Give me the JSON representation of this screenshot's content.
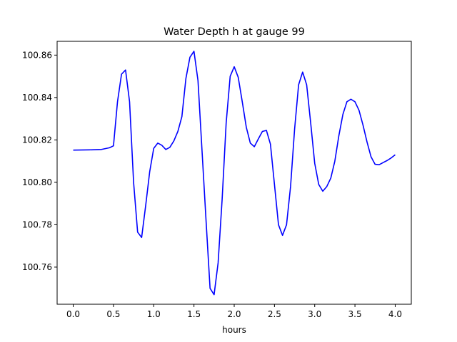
{
  "chart_data": {
    "type": "line",
    "title": "Water Depth h at gauge 99",
    "xlabel": "hours",
    "ylabel": "",
    "xlim": [
      -0.2,
      4.2
    ],
    "ylim": [
      100.7425,
      100.8665
    ],
    "xticks": [
      0.0,
      0.5,
      1.0,
      1.5,
      2.0,
      2.5,
      3.0,
      3.5,
      4.0
    ],
    "xtick_labels": [
      "0.0",
      "0.5",
      "1.0",
      "1.5",
      "2.0",
      "2.5",
      "3.0",
      "3.5",
      "4.0"
    ],
    "yticks": [
      100.76,
      100.78,
      100.8,
      100.82,
      100.84,
      100.86
    ],
    "ytick_labels": [
      "100.76",
      "100.78",
      "100.80",
      "100.82",
      "100.84",
      "100.86"
    ],
    "grid": false,
    "legend": "none",
    "series": [
      {
        "color": "#0000ff",
        "x": [
          0.0,
          0.2,
          0.35,
          0.45,
          0.5,
          0.55,
          0.6,
          0.65,
          0.7,
          0.75,
          0.8,
          0.85,
          0.9,
          0.95,
          1.0,
          1.05,
          1.1,
          1.15,
          1.2,
          1.25,
          1.3,
          1.35,
          1.4,
          1.45,
          1.5,
          1.55,
          1.6,
          1.65,
          1.7,
          1.75,
          1.8,
          1.85,
          1.9,
          1.95,
          2.0,
          2.05,
          2.1,
          2.15,
          2.2,
          2.25,
          2.3,
          2.35,
          2.4,
          2.45,
          2.5,
          2.55,
          2.6,
          2.65,
          2.7,
          2.75,
          2.8,
          2.85,
          2.9,
          2.95,
          3.0,
          3.05,
          3.1,
          3.15,
          3.2,
          3.25,
          3.3,
          3.35,
          3.4,
          3.45,
          3.5,
          3.55,
          3.6,
          3.65,
          3.7,
          3.75,
          3.8,
          3.85,
          3.9,
          3.95,
          4.0
        ],
        "y": [
          100.8152,
          100.8153,
          100.8155,
          100.8163,
          100.8172,
          100.838,
          100.851,
          100.853,
          100.838,
          100.8,
          100.7765,
          100.774,
          100.789,
          100.805,
          100.816,
          100.8185,
          100.8175,
          100.8155,
          100.8165,
          100.8195,
          100.824,
          100.831,
          100.849,
          100.859,
          100.8618,
          100.848,
          100.815,
          100.782,
          100.75,
          100.747,
          100.762,
          100.792,
          100.828,
          100.85,
          100.8545,
          100.8495,
          100.838,
          100.826,
          100.8185,
          100.8168,
          100.8205,
          100.824,
          100.8245,
          100.818,
          100.799,
          100.78,
          100.775,
          100.78,
          100.798,
          100.825,
          100.846,
          100.852,
          100.846,
          100.828,
          100.809,
          100.799,
          100.7958,
          100.798,
          100.802,
          100.81,
          100.822,
          100.832,
          100.838,
          100.8392,
          100.838,
          100.834,
          100.827,
          100.819,
          100.812,
          100.8085,
          100.8083,
          100.8093,
          100.8103,
          100.8115,
          100.813
        ]
      }
    ]
  }
}
